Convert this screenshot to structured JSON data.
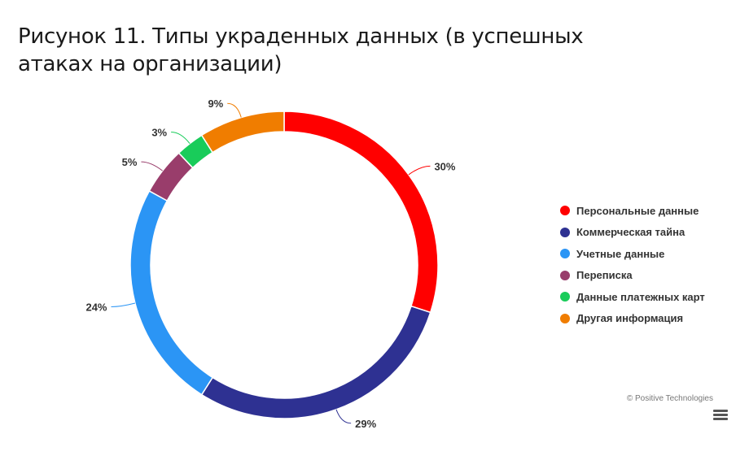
{
  "title": "Рисунок 11. Типы украденных данных (в успешных атаках на организации)",
  "chart_data": {
    "type": "pie",
    "variant": "donut",
    "categories": [
      "Персональные данные",
      "Коммерческая тайна",
      "Учетные данные",
      "Переписка",
      "Данные платежных карт",
      "Другая информация"
    ],
    "values": [
      30,
      29,
      24,
      5,
      3,
      9
    ],
    "labels": [
      "30%",
      "29%",
      "24%",
      "5%",
      "3%",
      "9%"
    ],
    "colors": [
      "#ff0000",
      "#2e3192",
      "#2b95f5",
      "#993d6b",
      "#19cc5a",
      "#f07d00"
    ],
    "legend_position": "right"
  },
  "credit": "© Positive Technologies",
  "menu_icon": "hamburger-menu-icon"
}
